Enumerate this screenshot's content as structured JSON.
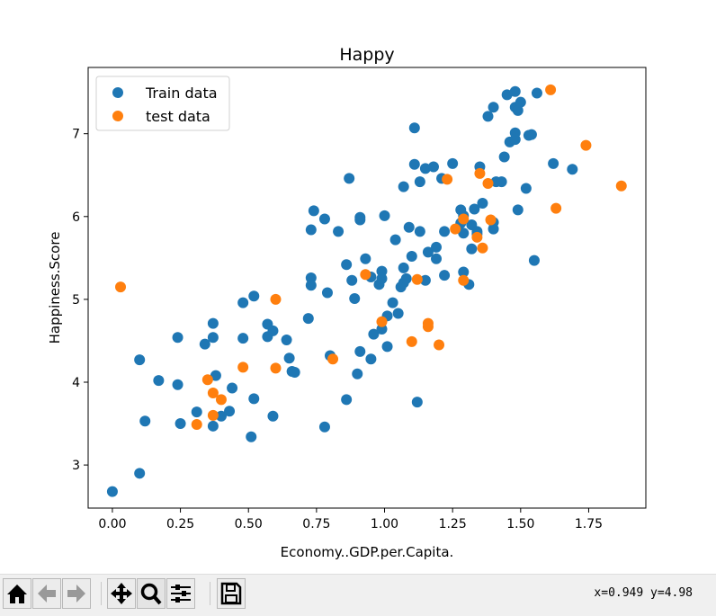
{
  "chart_data": {
    "type": "scatter",
    "title": "Happy",
    "xlabel": "Economy..GDP.per.Capita.",
    "ylabel": "Happiness.Score",
    "xlim": [
      -0.089,
      1.96
    ],
    "ylim": [
      2.48,
      7.8
    ],
    "xticks": [
      "0.00",
      "0.25",
      "0.50",
      "0.75",
      "1.00",
      "1.25",
      "1.50",
      "1.75"
    ],
    "yticks": [
      "3",
      "4",
      "5",
      "6",
      "7"
    ],
    "grid": false,
    "legend": "top-left",
    "series": [
      {
        "name": "Train data",
        "color": "#1f77b4",
        "points": [
          [
            0.0,
            2.68
          ],
          [
            0.1,
            2.9
          ],
          [
            0.1,
            4.27
          ],
          [
            0.12,
            3.53
          ],
          [
            0.17,
            4.02
          ],
          [
            0.24,
            4.54
          ],
          [
            0.24,
            3.97
          ],
          [
            0.25,
            3.5
          ],
          [
            0.31,
            3.64
          ],
          [
            0.34,
            4.46
          ],
          [
            0.37,
            4.71
          ],
          [
            0.37,
            4.54
          ],
          [
            0.37,
            3.47
          ],
          [
            0.38,
            4.08
          ],
          [
            0.4,
            3.59
          ],
          [
            0.43,
            3.65
          ],
          [
            0.44,
            3.93
          ],
          [
            0.48,
            4.96
          ],
          [
            0.48,
            4.53
          ],
          [
            0.51,
            3.34
          ],
          [
            0.52,
            3.8
          ],
          [
            0.52,
            5.04
          ],
          [
            0.57,
            4.7
          ],
          [
            0.57,
            4.55
          ],
          [
            0.59,
            4.62
          ],
          [
            0.59,
            3.59
          ],
          [
            0.64,
            4.51
          ],
          [
            0.65,
            4.29
          ],
          [
            0.66,
            4.13
          ],
          [
            0.67,
            4.12
          ],
          [
            0.72,
            4.77
          ],
          [
            0.73,
            5.26
          ],
          [
            0.73,
            5.17
          ],
          [
            0.73,
            5.84
          ],
          [
            0.74,
            6.07
          ],
          [
            0.78,
            3.46
          ],
          [
            0.78,
            5.97
          ],
          [
            0.79,
            5.08
          ],
          [
            0.8,
            4.32
          ],
          [
            0.83,
            5.82
          ],
          [
            0.86,
            5.42
          ],
          [
            0.86,
            3.79
          ],
          [
            0.87,
            6.46
          ],
          [
            0.88,
            5.23
          ],
          [
            0.89,
            5.01
          ],
          [
            0.9,
            4.1
          ],
          [
            0.91,
            4.37
          ],
          [
            0.91,
            5.99
          ],
          [
            0.91,
            5.96
          ],
          [
            0.93,
            5.49
          ],
          [
            0.95,
            5.27
          ],
          [
            0.95,
            4.28
          ],
          [
            0.96,
            4.58
          ],
          [
            0.98,
            5.18
          ],
          [
            0.99,
            5.34
          ],
          [
            0.99,
            5.25
          ],
          [
            0.99,
            4.64
          ],
          [
            1.0,
            6.01
          ],
          [
            1.01,
            4.8
          ],
          [
            1.01,
            4.43
          ],
          [
            1.03,
            4.96
          ],
          [
            1.04,
            5.72
          ],
          [
            1.05,
            4.83
          ],
          [
            1.07,
            5.38
          ],
          [
            1.06,
            5.15
          ],
          [
            1.07,
            5.2
          ],
          [
            1.07,
            6.36
          ],
          [
            1.08,
            5.25
          ],
          [
            1.09,
            5.87
          ],
          [
            1.1,
            5.52
          ],
          [
            1.11,
            6.63
          ],
          [
            1.11,
            7.07
          ],
          [
            1.12,
            3.76
          ],
          [
            1.13,
            6.42
          ],
          [
            1.13,
            5.82
          ],
          [
            1.15,
            6.58
          ],
          [
            1.15,
            5.23
          ],
          [
            1.16,
            5.57
          ],
          [
            1.18,
            6.6
          ],
          [
            1.19,
            5.63
          ],
          [
            1.19,
            5.49
          ],
          [
            1.21,
            6.46
          ],
          [
            1.22,
            5.82
          ],
          [
            1.22,
            5.29
          ],
          [
            1.25,
            6.64
          ],
          [
            1.28,
            5.92
          ],
          [
            1.28,
            6.08
          ],
          [
            1.29,
            5.8
          ],
          [
            1.29,
            5.33
          ],
          [
            1.29,
            6.01
          ],
          [
            1.31,
            5.18
          ],
          [
            1.32,
            5.9
          ],
          [
            1.32,
            5.61
          ],
          [
            1.33,
            6.09
          ],
          [
            1.34,
            5.82
          ],
          [
            1.34,
            5.79
          ],
          [
            1.35,
            6.6
          ],
          [
            1.36,
            6.16
          ],
          [
            1.38,
            7.21
          ],
          [
            1.4,
            7.32
          ],
          [
            1.4,
            5.85
          ],
          [
            1.4,
            5.93
          ],
          [
            1.41,
            6.42
          ],
          [
            1.43,
            6.42
          ],
          [
            1.44,
            6.72
          ],
          [
            1.45,
            7.47
          ],
          [
            1.46,
            6.9
          ],
          [
            1.48,
            7.51
          ],
          [
            1.48,
            7.32
          ],
          [
            1.48,
            6.93
          ],
          [
            1.48,
            7.01
          ],
          [
            1.49,
            7.28
          ],
          [
            1.49,
            6.08
          ],
          [
            1.5,
            7.38
          ],
          [
            1.52,
            6.34
          ],
          [
            1.53,
            6.98
          ],
          [
            1.54,
            6.99
          ],
          [
            1.55,
            5.47
          ],
          [
            1.56,
            7.49
          ],
          [
            1.62,
            6.64
          ],
          [
            1.69,
            6.57
          ]
        ]
      },
      {
        "name": "test data",
        "color": "#ff7f0e",
        "points": [
          [
            0.03,
            5.15
          ],
          [
            0.31,
            3.49
          ],
          [
            0.35,
            4.03
          ],
          [
            0.37,
            3.87
          ],
          [
            0.37,
            3.6
          ],
          [
            0.4,
            3.79
          ],
          [
            0.48,
            4.18
          ],
          [
            0.6,
            5.0
          ],
          [
            0.6,
            4.17
          ],
          [
            0.81,
            4.28
          ],
          [
            0.93,
            5.3
          ],
          [
            0.99,
            4.73
          ],
          [
            1.1,
            4.49
          ],
          [
            1.12,
            5.24
          ],
          [
            1.16,
            4.67
          ],
          [
            1.16,
            4.71
          ],
          [
            1.2,
            4.45
          ],
          [
            1.23,
            6.45
          ],
          [
            1.26,
            5.85
          ],
          [
            1.29,
            5.97
          ],
          [
            1.29,
            5.23
          ],
          [
            1.34,
            5.75
          ],
          [
            1.35,
            6.52
          ],
          [
            1.36,
            5.62
          ],
          [
            1.38,
            6.4
          ],
          [
            1.39,
            5.96
          ],
          [
            1.61,
            7.53
          ],
          [
            1.63,
            6.1
          ],
          [
            1.74,
            6.86
          ],
          [
            1.87,
            6.37
          ]
        ]
      }
    ]
  },
  "toolbar": {
    "buttons": [
      "home-icon",
      "back-icon",
      "forward-icon",
      "pan-icon",
      "zoom-icon",
      "configure-subplots-icon",
      "save-icon"
    ],
    "coords": "x=0.949 y=4.98"
  }
}
